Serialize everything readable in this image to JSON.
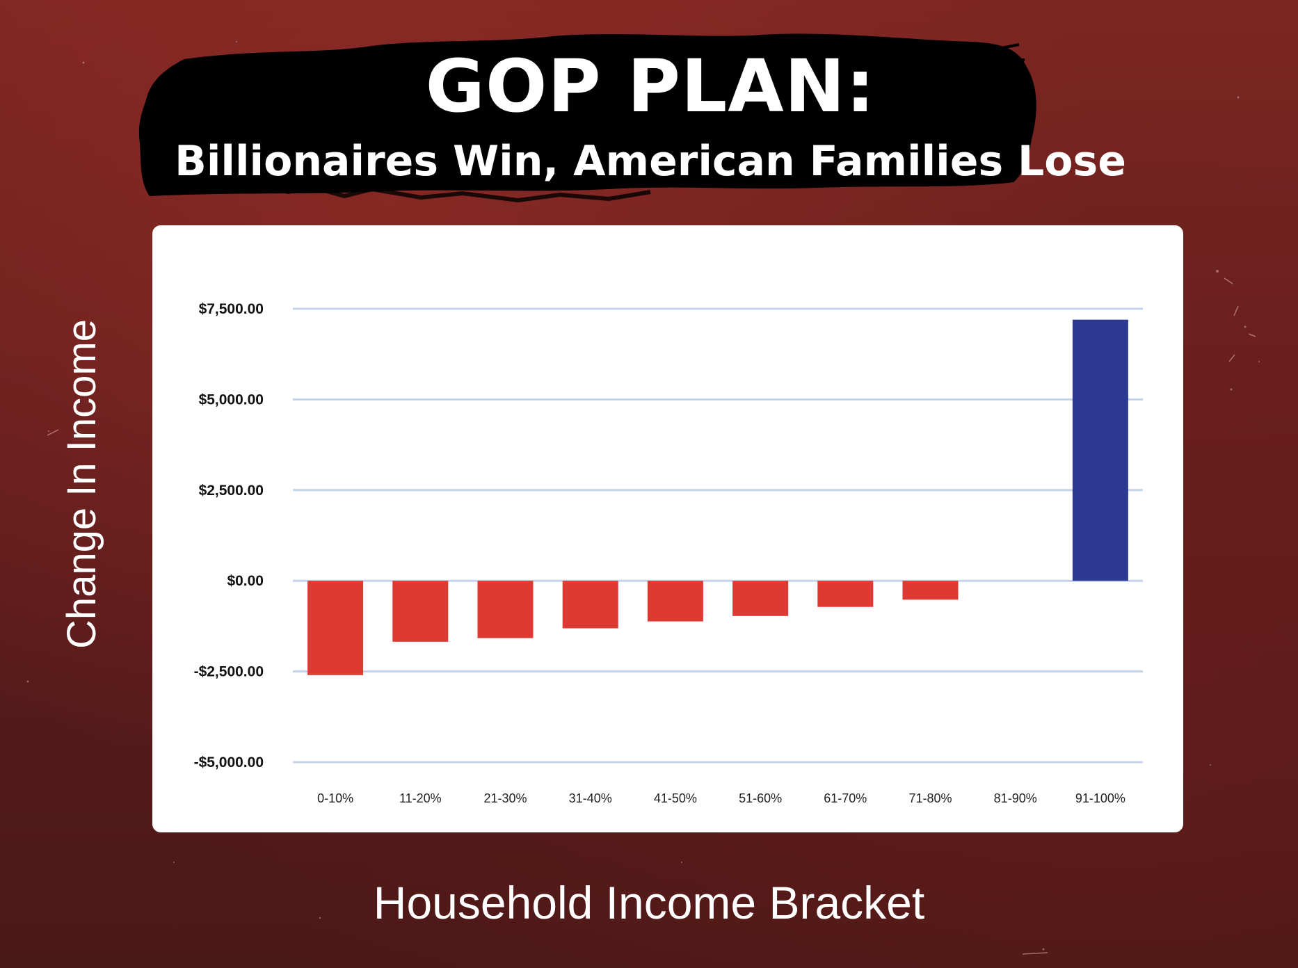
{
  "header": {
    "title": "GOP PLAN:",
    "subtitle": "Billionaires Win, American Families Lose"
  },
  "colors": {
    "background": "#6a201e",
    "banner": "#000000",
    "negative_bar": "#dd3a34",
    "positive_bar": "#2c3991",
    "gridline": "#c3d3e8"
  },
  "chart_data": {
    "type": "bar",
    "xlabel": "Household Income Bracket",
    "ylabel": "Change In Income",
    "categories": [
      "0-10%",
      "11-20%",
      "21-30%",
      "31-40%",
      "41-50%",
      "51-60%",
      "61-70%",
      "71-80%",
      "81-90%",
      "91-100%"
    ],
    "values": [
      -2600,
      -1680,
      -1580,
      -1310,
      -1120,
      -970,
      -720,
      -520,
      0,
      7200
    ],
    "ylim": [
      -5000,
      7500
    ],
    "y_ticks": [
      7500,
      5000,
      2500,
      0,
      -2500,
      -5000
    ],
    "y_tick_labels": [
      "$7,500.00",
      "$5,000.00",
      "$2,500.00",
      "$0.00",
      "-$2,500.00",
      "-$5,000.00"
    ],
    "grid": true,
    "legend": "none"
  }
}
